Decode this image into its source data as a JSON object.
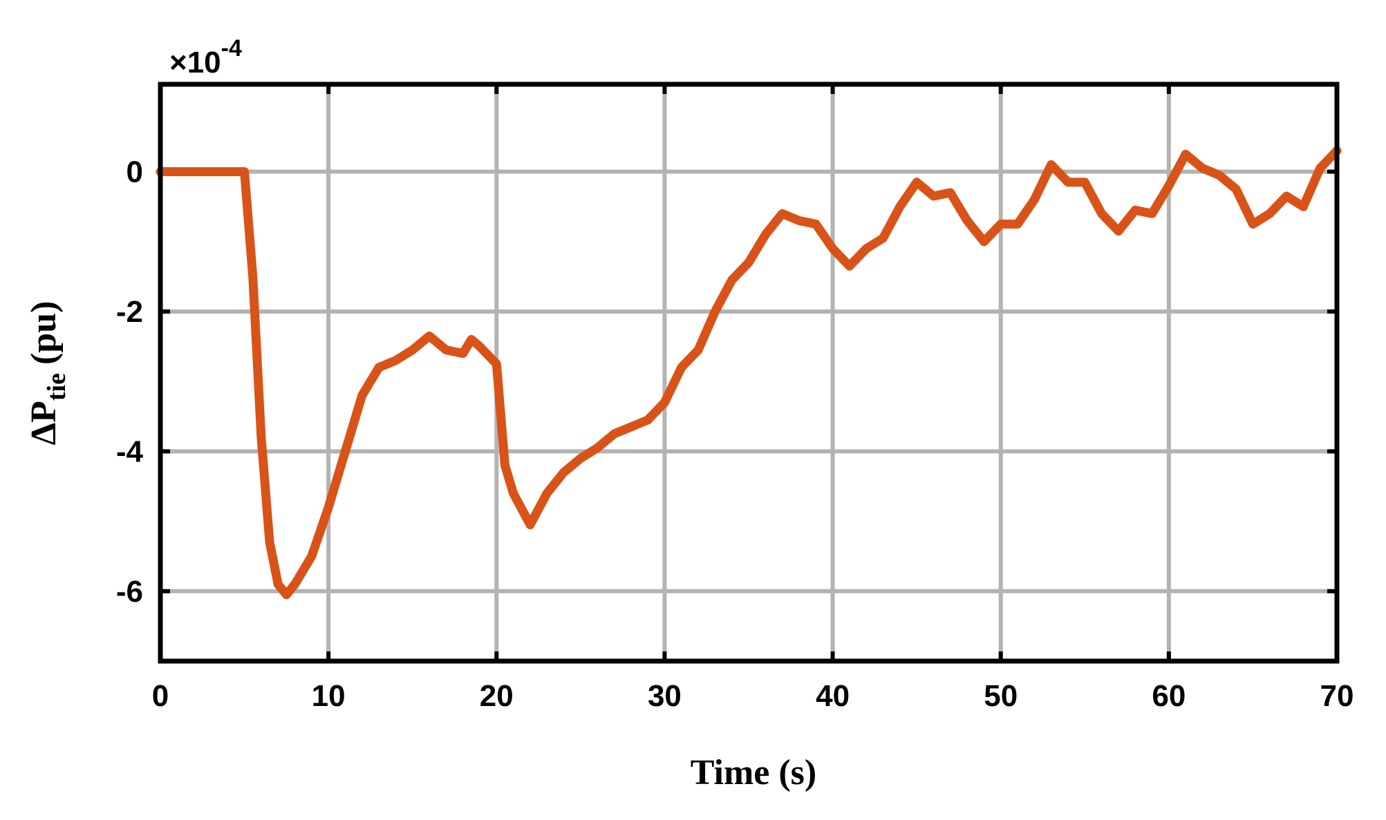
{
  "chart_data": {
    "type": "line",
    "x_label": "Time (s)",
    "y_label": "ΔP",
    "y_label_subscript": "tie",
    "y_label_unit": "(pu)",
    "y_multiplier": "×10",
    "y_exponent": "-4",
    "xlim": [
      0,
      70
    ],
    "ylim": [
      -7,
      1.25
    ],
    "xticks": [
      0,
      10,
      20,
      30,
      40,
      50,
      60,
      70
    ],
    "yticks": [
      -6,
      -4,
      -2,
      0
    ],
    "grid": true,
    "x": [
      0,
      5,
      5.5,
      6,
      6.5,
      7,
      7.5,
      8,
      9,
      10,
      11,
      12,
      13,
      14,
      15,
      16,
      17,
      18,
      18.5,
      19,
      20,
      20.5,
      21,
      22,
      23,
      24,
      25,
      26,
      27,
      28,
      29,
      30,
      31,
      32,
      33,
      34,
      35,
      36,
      37,
      38,
      39,
      40,
      41,
      42,
      43,
      44,
      45,
      46,
      47,
      48,
      49,
      50,
      51,
      52,
      53,
      54,
      55,
      56,
      57,
      58,
      59,
      60,
      61,
      62,
      63,
      64,
      65,
      66,
      67,
      68,
      69,
      70
    ],
    "series": [
      {
        "color": "#d95319",
        "values": [
          0,
          0,
          -1.5,
          -3.8,
          -5.3,
          -5.9,
          -6.05,
          -5.9,
          -5.5,
          -4.8,
          -4.0,
          -3.2,
          -2.8,
          -2.7,
          -2.55,
          -2.35,
          -2.55,
          -2.6,
          -2.4,
          -2.5,
          -2.75,
          -4.2,
          -4.6,
          -5.05,
          -4.6,
          -4.3,
          -4.1,
          -3.95,
          -3.75,
          -3.65,
          -3.55,
          -3.3,
          -2.8,
          -2.55,
          -2.0,
          -1.55,
          -1.3,
          -0.9,
          -0.6,
          -0.7,
          -0.75,
          -1.1,
          -1.35,
          -1.1,
          -0.95,
          -0.5,
          -0.15,
          -0.35,
          -0.3,
          -0.7,
          -1.0,
          -0.75,
          -0.75,
          -0.4,
          0.1,
          -0.15,
          -0.15,
          -0.6,
          -0.85,
          -0.55,
          -0.6,
          -0.2,
          0.25,
          0.05,
          -0.05,
          -0.25,
          -0.75,
          -0.6,
          -0.35,
          -0.5,
          0.05,
          0.3
        ]
      }
    ]
  }
}
